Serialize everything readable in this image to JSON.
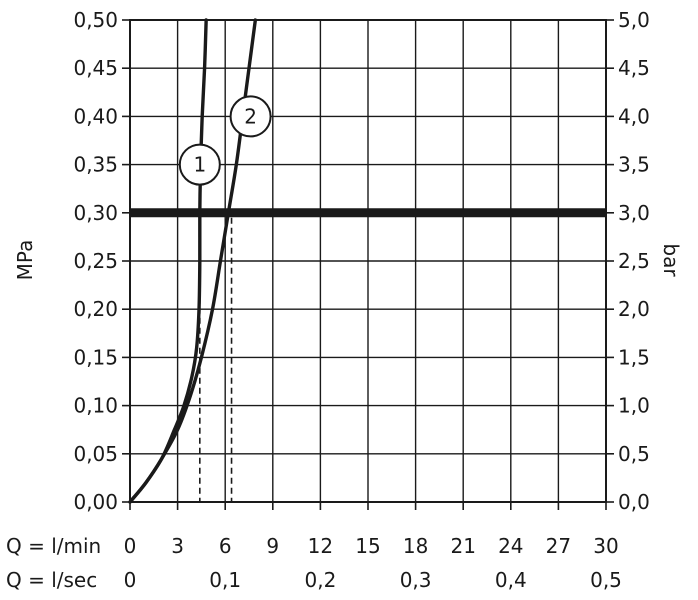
{
  "chart_data": {
    "type": "line",
    "ylabel_left": "MPa",
    "ylabel_right": "bar",
    "ylim": [
      0,
      0.5
    ],
    "xlim": [
      0,
      30
    ],
    "y_ticks_left": [
      "0,00",
      "0,05",
      "0,10",
      "0,15",
      "0,20",
      "0,25",
      "0,30",
      "0,35",
      "0,40",
      "0,45",
      "0,50"
    ],
    "y_ticks_right": [
      "0,0",
      "0,5",
      "1,0",
      "1,5",
      "2,0",
      "2,5",
      "3,0",
      "3,5",
      "4,0",
      "4,5",
      "5,0"
    ],
    "x_row_lmin": {
      "label": "Q = l/min",
      "ticks": [
        "0",
        "3",
        "6",
        "9",
        "12",
        "15",
        "18",
        "21",
        "24",
        "27",
        "30"
      ],
      "values": [
        0,
        3,
        6,
        9,
        12,
        15,
        18,
        21,
        24,
        27,
        30
      ]
    },
    "x_row_lsec": {
      "label": "Q = l/sec",
      "ticks": [
        "0",
        "0,1",
        "0,2",
        "0,3",
        "0,4",
        "0,5"
      ],
      "values": [
        0,
        6,
        12,
        18,
        24,
        30
      ]
    },
    "grid": true,
    "reference_line": {
      "y": 0.3
    },
    "series": [
      {
        "label": "1",
        "points": [
          [
            0,
            0
          ],
          [
            1,
            0.02
          ],
          [
            2,
            0.045
          ],
          [
            2.8,
            0.075
          ],
          [
            3.4,
            0.1
          ],
          [
            3.9,
            0.13
          ],
          [
            4.2,
            0.16
          ],
          [
            4.35,
            0.2
          ],
          [
            4.4,
            0.25
          ],
          [
            4.4,
            0.3
          ],
          [
            4.45,
            0.35
          ],
          [
            4.55,
            0.4
          ],
          [
            4.7,
            0.45
          ],
          [
            4.8,
            0.5
          ]
        ],
        "drop_x": 4.4
      },
      {
        "label": "2",
        "points": [
          [
            0,
            0
          ],
          [
            1,
            0.02
          ],
          [
            2,
            0.045
          ],
          [
            3,
            0.075
          ],
          [
            3.8,
            0.11
          ],
          [
            4.5,
            0.15
          ],
          [
            5.2,
            0.2
          ],
          [
            5.7,
            0.25
          ],
          [
            6.2,
            0.3
          ],
          [
            6.7,
            0.35
          ],
          [
            7.1,
            0.4
          ],
          [
            7.5,
            0.45
          ],
          [
            7.9,
            0.5
          ]
        ],
        "drop_x": 6.4
      }
    ]
  }
}
